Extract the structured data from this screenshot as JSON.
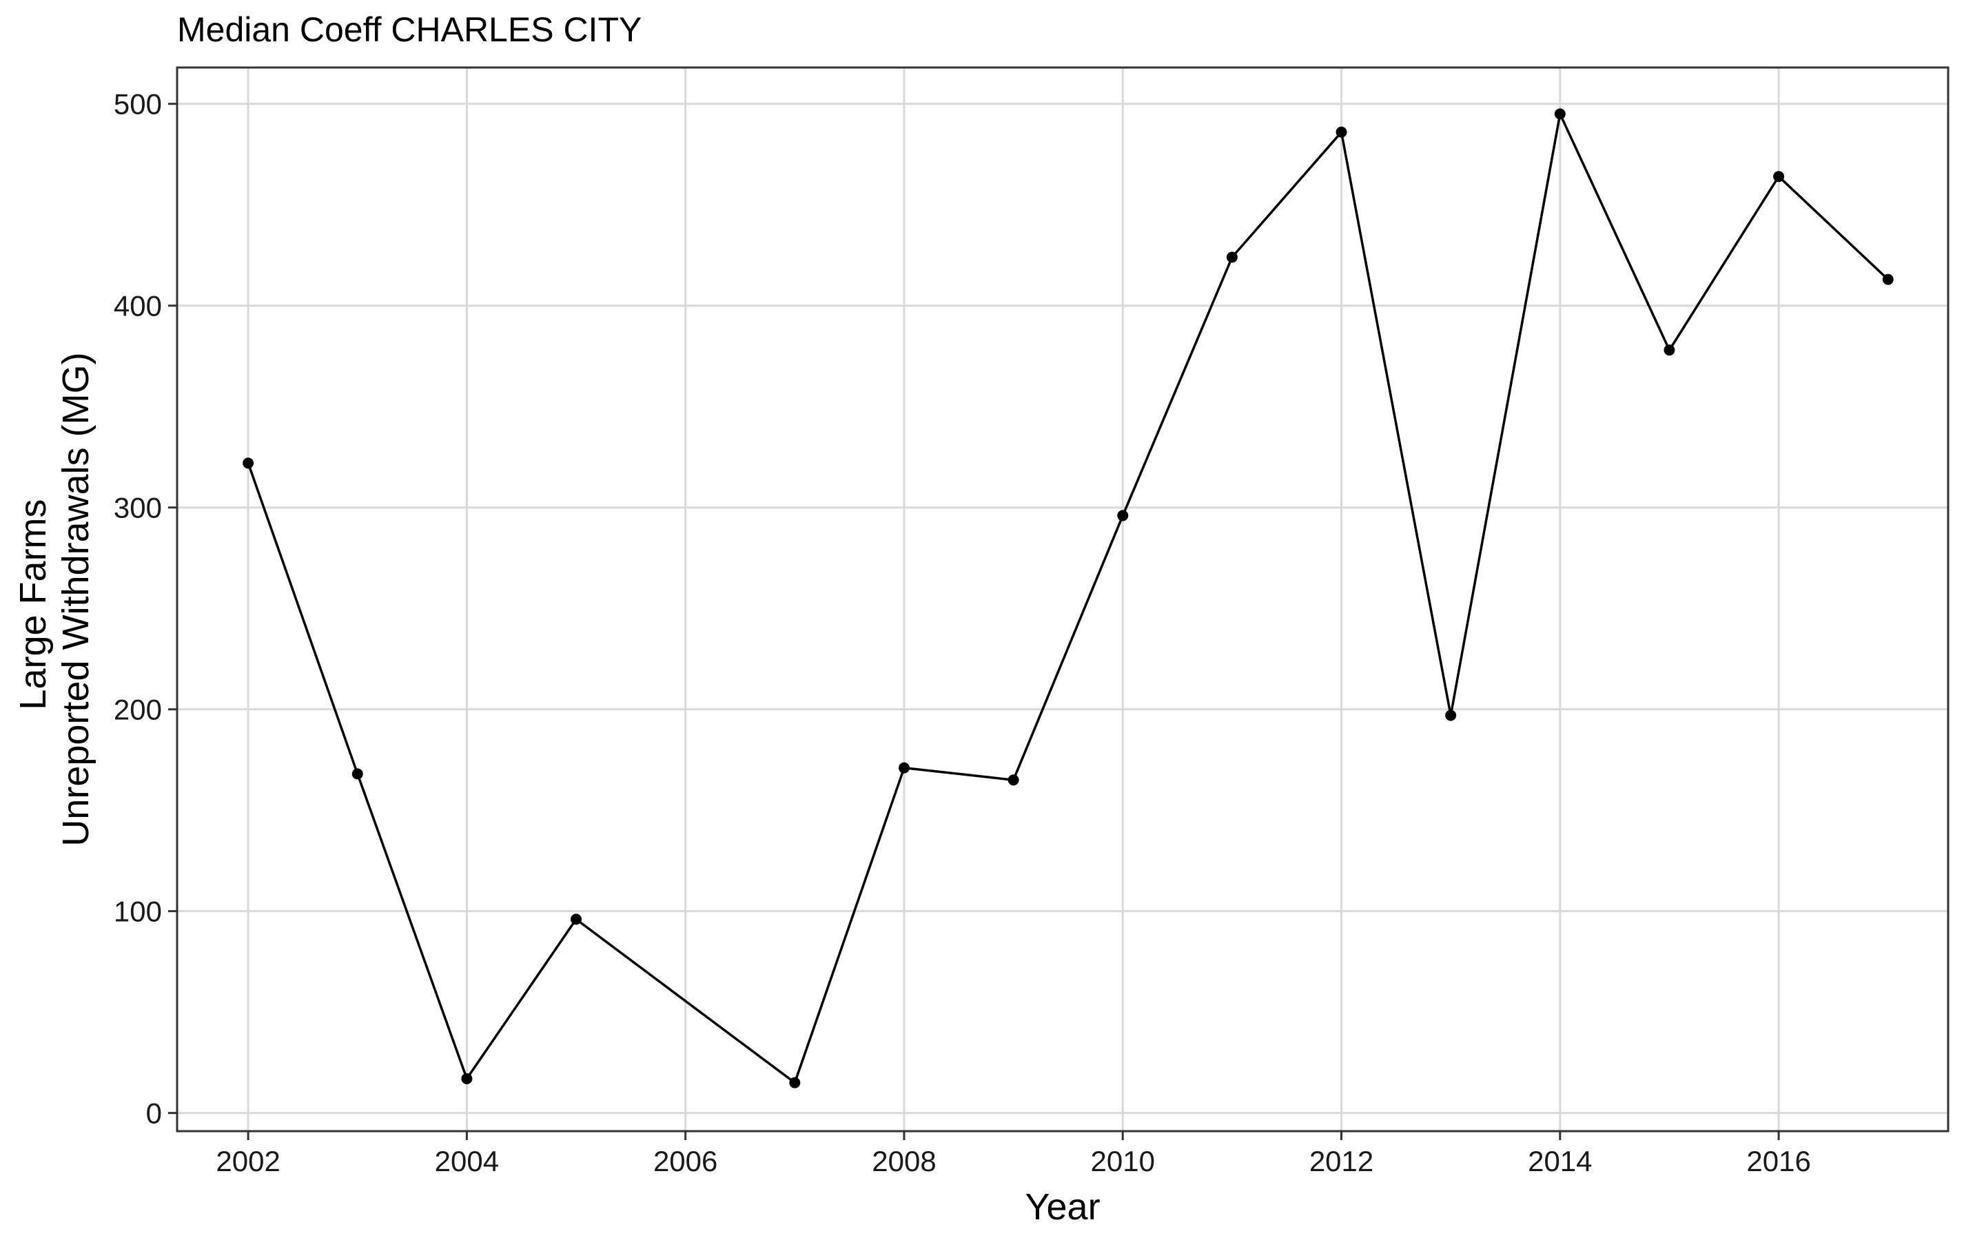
{
  "chart_data": {
    "type": "line",
    "title": "Median Coeff CHARLES CITY",
    "xlabel": "Year",
    "ylabel": [
      "Large Farms",
      "Unreported Withdrawals (MG)"
    ],
    "xlim": [
      2001.35,
      2017.55
    ],
    "ylim": [
      -9,
      518
    ],
    "xticks": [
      2002,
      2004,
      2006,
      2008,
      2010,
      2012,
      2014,
      2016
    ],
    "yticks": [
      0,
      100,
      200,
      300,
      400,
      500
    ],
    "grid": true,
    "legend": "none",
    "colors": {
      "line": "#000000",
      "grid": "#d9d9d9",
      "border": "#333333"
    },
    "series": [
      {
        "x": [
          2002,
          2003,
          2004,
          2005,
          2007,
          2008,
          2009,
          2010,
          2011,
          2012,
          2013,
          2014,
          2015,
          2016,
          2017
        ],
        "values": [
          322,
          168,
          17,
          96,
          15,
          171,
          165,
          296,
          424,
          486,
          197,
          495,
          378,
          464,
          413
        ]
      }
    ]
  }
}
